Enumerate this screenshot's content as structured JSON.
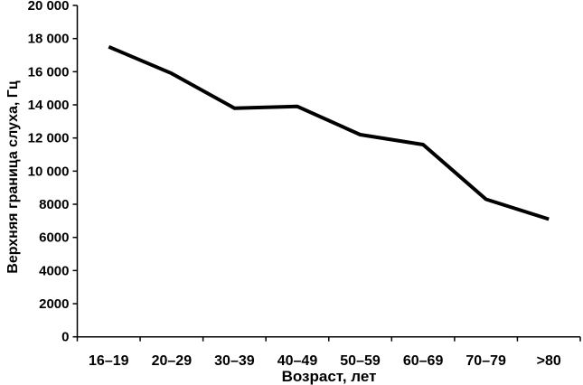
{
  "chart_data": {
    "type": "line",
    "title": "",
    "categories": [
      "16–19",
      "20–29",
      "30–39",
      "40–49",
      "50–59",
      "60–69",
      "70–79",
      ">80"
    ],
    "values": [
      17500,
      15900,
      13800,
      13900,
      12200,
      11600,
      8300,
      7100
    ],
    "xlabel": "Возраст, лет",
    "ylabel": "Верхняя граница слуха, Гц",
    "ylim": [
      0,
      20000
    ],
    "ytick_step": 2000,
    "ytick_labels": [
      "0",
      "2000",
      "4000",
      "6000",
      "8000",
      "10 000",
      "12 000",
      "14 000",
      "16 000",
      "18 000",
      "20 000"
    ],
    "grid": false,
    "legend": "none",
    "line_color": "#000000",
    "axis_color": "#000000",
    "background_color": "#ffffff"
  }
}
